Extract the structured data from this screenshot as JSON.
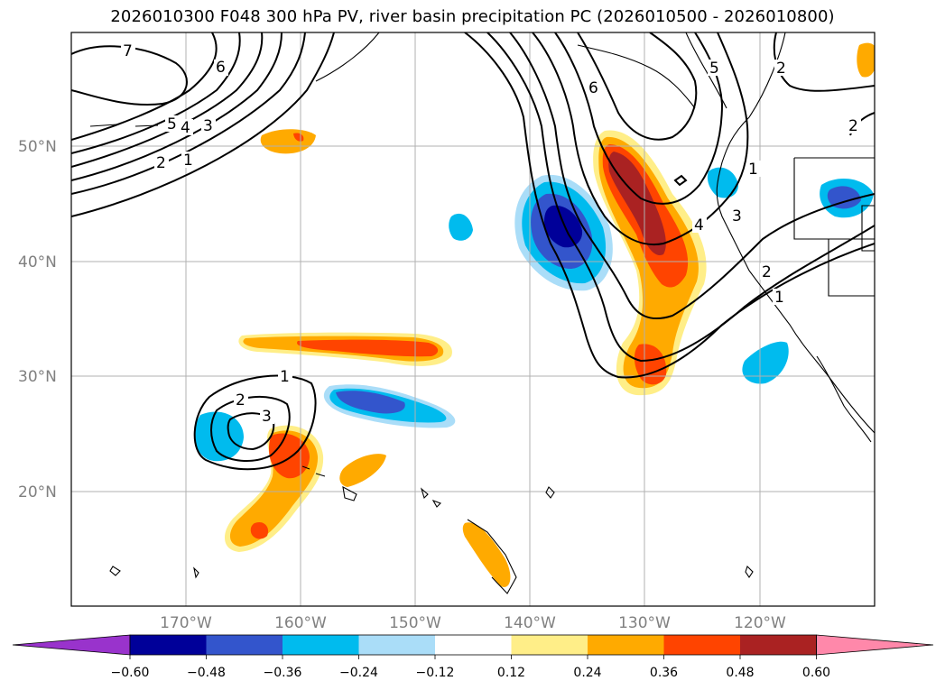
{
  "title": "2026010300 F048 300 hPa PV, river basin precipitation PC (2026010500 - 2026010800)",
  "map": {
    "lat_labels": [
      "50°N",
      "40°N",
      "30°N",
      "20°N"
    ],
    "lon_labels": [
      "170°W",
      "160°W",
      "150°W",
      "140°W",
      "130°W",
      "120°W"
    ],
    "pv_contour_labels": [
      "7",
      "6",
      "5",
      "4",
      "3",
      "2",
      "1",
      "1",
      "2",
      "3",
      "6",
      "5",
      "2",
      "2",
      "1",
      "3",
      "4",
      "2",
      "1"
    ],
    "colors": {
      "ocean": "#ffffff",
      "grid": "#b0b0b0",
      "coast": "#000000",
      "contour": "#000000"
    }
  },
  "colorbar": {
    "ticks": [
      "−0.60",
      "−0.48",
      "−0.36",
      "−0.24",
      "−0.12",
      "0.12",
      "0.24",
      "0.36",
      "0.48",
      "0.60"
    ],
    "colors": [
      "#9933cc",
      "#000099",
      "#3355cc",
      "#00bbee",
      "#aaddf8",
      "#ffffff",
      "#ffee88",
      "#ffaa00",
      "#ff4400",
      "#aa2222",
      "#ff88aa"
    ]
  }
}
